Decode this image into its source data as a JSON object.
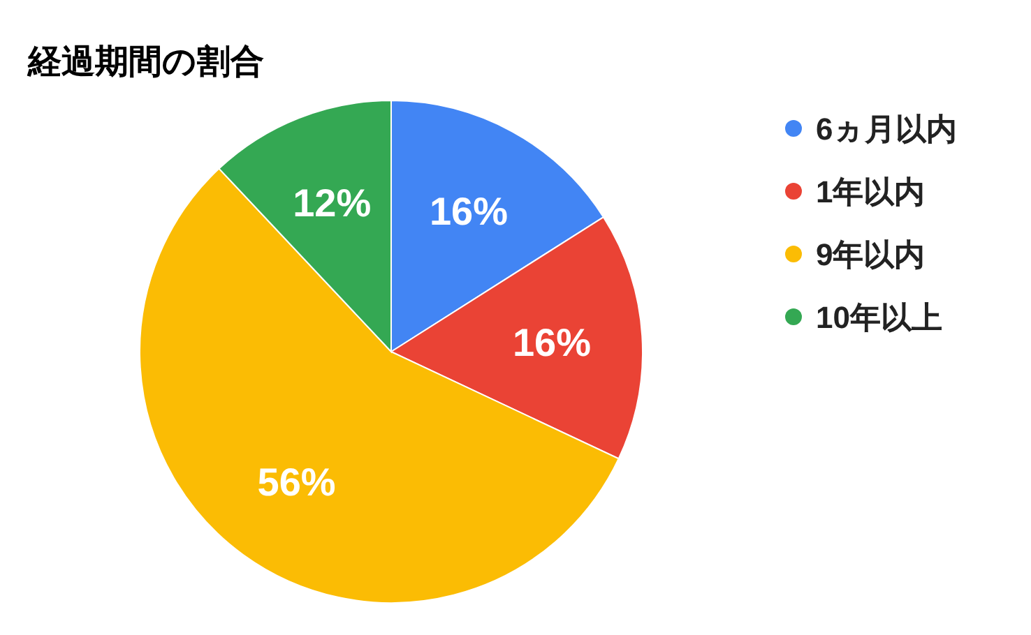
{
  "chart_data": {
    "type": "pie",
    "title": "経過期間の割合",
    "categories": [
      "6ヵ月以内",
      "1年以内",
      "9年以内",
      "10年以上"
    ],
    "values": [
      16,
      16,
      56,
      12
    ],
    "colors": [
      "#4285f4",
      "#ea4335",
      "#fbbc04",
      "#34a853"
    ],
    "value_labels": [
      "16%",
      "16%",
      "56%",
      "12%"
    ],
    "legend": "right"
  }
}
